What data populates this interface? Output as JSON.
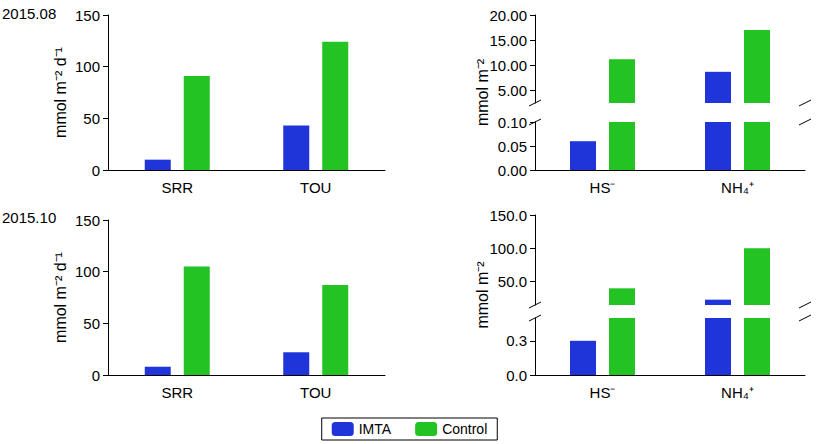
{
  "chart_data": [
    {
      "type": "bar",
      "title": "2015.08",
      "ylabel": "mmol m⁻² d⁻¹",
      "categories": [
        "SRR",
        "TOU"
      ],
      "series": [
        {
          "name": "IMTA",
          "color": "#1f35d9",
          "values": [
            10,
            43
          ]
        },
        {
          "name": "Control",
          "color": "#22c322",
          "values": [
            91,
            124
          ]
        }
      ],
      "ylim": [
        0,
        150
      ],
      "yticks": [
        0,
        50,
        100,
        150
      ],
      "grid": false,
      "legend": "bottom"
    },
    {
      "type": "bar",
      "ylabel": "mmol m⁻²",
      "categories": [
        "HS⁻",
        "NH₄⁺"
      ],
      "series": [
        {
          "name": "IMTA",
          "color": "#1f35d9",
          "values": [
            0.06,
            8.7
          ]
        },
        {
          "name": "Control",
          "color": "#22c322",
          "values": [
            11.2,
            17
          ]
        }
      ],
      "y_segments": [
        {
          "ylim": [
            0,
            0.1
          ],
          "yticks": [
            {
              "value": 0,
              "label": "0.00"
            },
            {
              "value": 0.05,
              "label": "0.05"
            },
            {
              "value": 0.1,
              "label": "0.10"
            }
          ]
        },
        {
          "ylim": [
            2.5,
            20
          ],
          "yticks": [
            {
              "value": 5,
              "label": "5.00"
            },
            {
              "value": 10,
              "label": "10.00"
            },
            {
              "value": 15,
              "label": "15.00"
            },
            {
              "value": 20,
              "label": "20.00"
            }
          ]
        }
      ],
      "grid": false
    },
    {
      "type": "bar",
      "title": "2015.10",
      "ylabel": "mmol m⁻² d⁻¹",
      "categories": [
        "SRR",
        "TOU"
      ],
      "series": [
        {
          "name": "IMTA",
          "color": "#1f35d9",
          "values": [
            8,
            22
          ]
        },
        {
          "name": "Control",
          "color": "#22c322",
          "values": [
            105,
            87
          ]
        }
      ],
      "ylim": [
        0,
        150
      ],
      "yticks": [
        0,
        50,
        100,
        150
      ],
      "grid": false
    },
    {
      "type": "bar",
      "ylabel": "mmol m⁻²",
      "categories": [
        "HS⁻",
        "NH₄⁺"
      ],
      "series": [
        {
          "name": "IMTA",
          "color": "#1f35d9",
          "values": [
            0.3,
            23
          ]
        },
        {
          "name": "Control",
          "color": "#22c322",
          "values": [
            40,
            100
          ]
        }
      ],
      "y_segments": [
        {
          "ylim": [
            0,
            0.5
          ],
          "yticks": [
            {
              "value": 0,
              "label": "0.0"
            },
            {
              "value": 0.3,
              "label": "0.3"
            }
          ]
        },
        {
          "ylim": [
            15,
            150
          ],
          "yticks": [
            {
              "value": 50,
              "label": "50.0"
            },
            {
              "value": 100,
              "label": "100.0"
            },
            {
              "value": 150,
              "label": "150.0"
            }
          ]
        }
      ],
      "grid": false
    }
  ]
}
